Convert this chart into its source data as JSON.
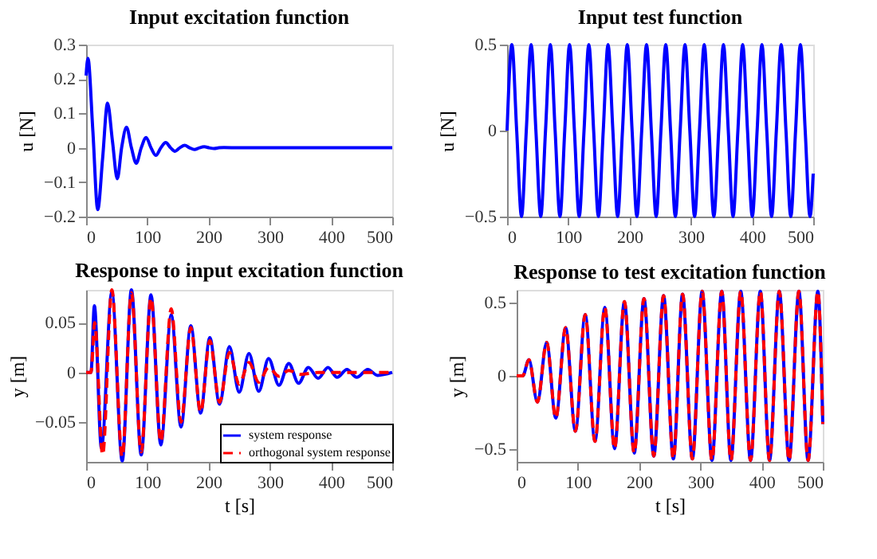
{
  "chart_data": [
    {
      "type": "line",
      "title": "Input excitation function",
      "ylabel": "u [N]",
      "xlim": [
        0,
        500
      ],
      "xticks": [
        0,
        100,
        200,
        300,
        400,
        500
      ],
      "ylim": [
        -0.2,
        0.3
      ],
      "yticks": [
        -0.2,
        -0.1,
        0,
        0.1,
        0.2,
        0.3
      ],
      "legend": false,
      "grid": false,
      "series": [
        {
          "color": "#0000ff",
          "line_style": "solid",
          "x": [
            0,
            3,
            11,
            19,
            27,
            35,
            43,
            51,
            58,
            66,
            74,
            82,
            90,
            98,
            106,
            114,
            122,
            130,
            138,
            145,
            153,
            161,
            169,
            177,
            185,
            193,
            201,
            209,
            217,
            225,
            250,
            500
          ],
          "values": [
            0.21,
            0.26,
            0.05,
            -0.18,
            -0.03,
            0.13,
            0.02,
            -0.09,
            0,
            0.06,
            0,
            -0.045,
            0,
            0.03,
            0,
            -0.022,
            0,
            0.015,
            0,
            -0.01,
            0,
            0.007,
            0,
            -0.005,
            0,
            0.003,
            0,
            -0.002,
            0,
            0.001,
            0,
            0
          ]
        }
      ]
    },
    {
      "type": "line",
      "title": "Input test function",
      "ylabel": "u [N]",
      "xlim": [
        0,
        500
      ],
      "xticks": [
        0,
        100,
        200,
        300,
        400,
        500
      ],
      "ylim": [
        -0.5,
        0.5
      ],
      "yticks": [
        -0.5,
        0,
        0.5
      ],
      "legend": false,
      "grid": false,
      "series": [
        {
          "color": "#0000ff",
          "line_style": "solid",
          "x": [
            0,
            7.9,
            15.7,
            23.6,
            31.4,
            39.3,
            47.1,
            55.0,
            62.8,
            70.7,
            78.5,
            86.4,
            94.2,
            102.1,
            110.0,
            117.8,
            125.7,
            133.5,
            141.4,
            149.2,
            157.1,
            164.9,
            172.8,
            180.6,
            188.5,
            196.3,
            204.2,
            212.1,
            219.9,
            227.8,
            235.6,
            243.5,
            251.3,
            259.2,
            267.0,
            274.9,
            282.7,
            290.6,
            298.5,
            306.3,
            314.2,
            322.0,
            329.9,
            337.7,
            345.6,
            353.4,
            361.3,
            369.1,
            377.0,
            384.8,
            392.7,
            400.5,
            408.4,
            416.2,
            424.1,
            432.0,
            439.8,
            447.7,
            455.5,
            463.4,
            471.2,
            479.1,
            486.9,
            494.8,
            500
          ],
          "values": [
            0,
            0.5,
            0,
            -0.5,
            0,
            0.5,
            0,
            -0.5,
            0,
            0.5,
            0,
            -0.5,
            0,
            0.5,
            0,
            -0.5,
            0,
            0.5,
            0,
            -0.5,
            0,
            0.5,
            0,
            -0.5,
            0,
            0.5,
            0,
            -0.5,
            0,
            0.5,
            0,
            -0.5,
            0,
            0.5,
            0,
            -0.5,
            0,
            0.5,
            0,
            -0.5,
            0,
            0.5,
            0,
            -0.5,
            0,
            0.5,
            0,
            -0.5,
            0,
            0.5,
            0,
            -0.5,
            0,
            0.5,
            0,
            -0.5,
            0,
            0.5,
            0,
            -0.5,
            0,
            0.5,
            0,
            -0.5,
            -0.25
          ]
        }
      ]
    },
    {
      "type": "line",
      "title": "Response to input excitation function",
      "xlabel": "t [s]",
      "ylabel": "y [m]",
      "xlim": [
        0,
        500
      ],
      "xticks": [
        0,
        100,
        200,
        300,
        400,
        500
      ],
      "ylim": [
        -0.09,
        0.083
      ],
      "yticks": [
        -0.05,
        0,
        0.05
      ],
      "legend": "bottom right",
      "grid": false,
      "series": [
        {
          "name": "system response",
          "color": "#0000ff",
          "line_style": "solid",
          "x": [
            0,
            8,
            13.5,
            25,
            42,
            59,
            74,
            90,
            106,
            122,
            139,
            155,
            171,
            187,
            202,
            218,
            234,
            250,
            266,
            282,
            298,
            315,
            331,
            347,
            363,
            379,
            395,
            410,
            426,
            442,
            460,
            476,
            500
          ],
          "values": [
            0,
            0,
            0.067,
            -0.076,
            0.081,
            -0.089,
            0.083,
            -0.083,
            0.078,
            -0.073,
            0.058,
            -0.055,
            0.047,
            -0.041,
            0.035,
            -0.032,
            0.026,
            -0.02,
            0.019,
            -0.019,
            0.014,
            -0.013,
            0.009,
            -0.011,
            0.005,
            -0.006,
            0.005,
            -0.005,
            0.003,
            -0.005,
            0.003,
            -0.003,
            0
          ]
        },
        {
          "name": "orthogonal system response",
          "color": "#ff0000",
          "line_style": "dashed",
          "x": [
            0,
            8,
            14,
            27,
            42,
            59,
            74,
            90,
            106,
            122,
            139,
            155,
            171,
            187,
            202,
            218,
            234,
            250,
            266,
            282,
            298,
            315,
            331,
            350,
            380,
            500
          ],
          "values": [
            0,
            0,
            0.05,
            -0.083,
            0.083,
            -0.085,
            0.08,
            -0.08,
            0.075,
            -0.07,
            0.064,
            -0.05,
            0.045,
            -0.04,
            0.032,
            -0.03,
            0.02,
            -0.012,
            0.01,
            -0.01,
            0.005,
            -0.004,
            0.002,
            -0.002,
            0,
            0
          ]
        }
      ]
    },
    {
      "type": "line",
      "title": "Response to test excitation function",
      "xlabel": "t [s]",
      "ylabel": "y [m]",
      "xlim": [
        0,
        500
      ],
      "xticks": [
        0,
        100,
        200,
        300,
        400,
        500
      ],
      "ylim": [
        -0.59,
        0.59
      ],
      "yticks": [
        -0.5,
        0,
        0.5
      ],
      "legend": false,
      "grid": false,
      "series": [
        {
          "color": "#0000ff",
          "line_style": "solid",
          "x": [
            0,
            10,
            20,
            34,
            49,
            64,
            80,
            96,
            112,
            128,
            144,
            160,
            176,
            192,
            208,
            224,
            240,
            256,
            271,
            287,
            303,
            319,
            335,
            350,
            366,
            382,
            398,
            413,
            429,
            445,
            461,
            476,
            492,
            500
          ],
          "values": [
            0,
            0,
            0.11,
            -0.18,
            0.23,
            -0.29,
            0.33,
            -0.38,
            0.42,
            -0.45,
            0.47,
            -0.5,
            0.51,
            -0.53,
            0.53,
            -0.55,
            0.55,
            -0.57,
            0.56,
            -0.57,
            0.58,
            -0.58,
            0.58,
            -0.58,
            0.58,
            -0.58,
            0.58,
            -0.58,
            0.58,
            -0.58,
            0.58,
            -0.58,
            0.58,
            -0.33
          ]
        },
        {
          "color": "#ff0000",
          "line_style": "dashed",
          "x": [
            0,
            10,
            20,
            34,
            49,
            64,
            80,
            96,
            112,
            128,
            144,
            160,
            176,
            192,
            208,
            224,
            240,
            256,
            271,
            287,
            303,
            319,
            335,
            350,
            366,
            382,
            398,
            413,
            429,
            445,
            461,
            476,
            492,
            500
          ],
          "values": [
            0,
            0,
            0.11,
            -0.18,
            0.23,
            -0.29,
            0.33,
            -0.38,
            0.42,
            -0.45,
            0.47,
            -0.5,
            0.51,
            -0.53,
            0.53,
            -0.55,
            0.55,
            -0.57,
            0.56,
            -0.57,
            0.58,
            -0.58,
            0.58,
            -0.58,
            0.58,
            -0.58,
            0.58,
            -0.58,
            0.58,
            -0.58,
            0.58,
            -0.58,
            0.58,
            -0.33
          ]
        }
      ]
    }
  ]
}
